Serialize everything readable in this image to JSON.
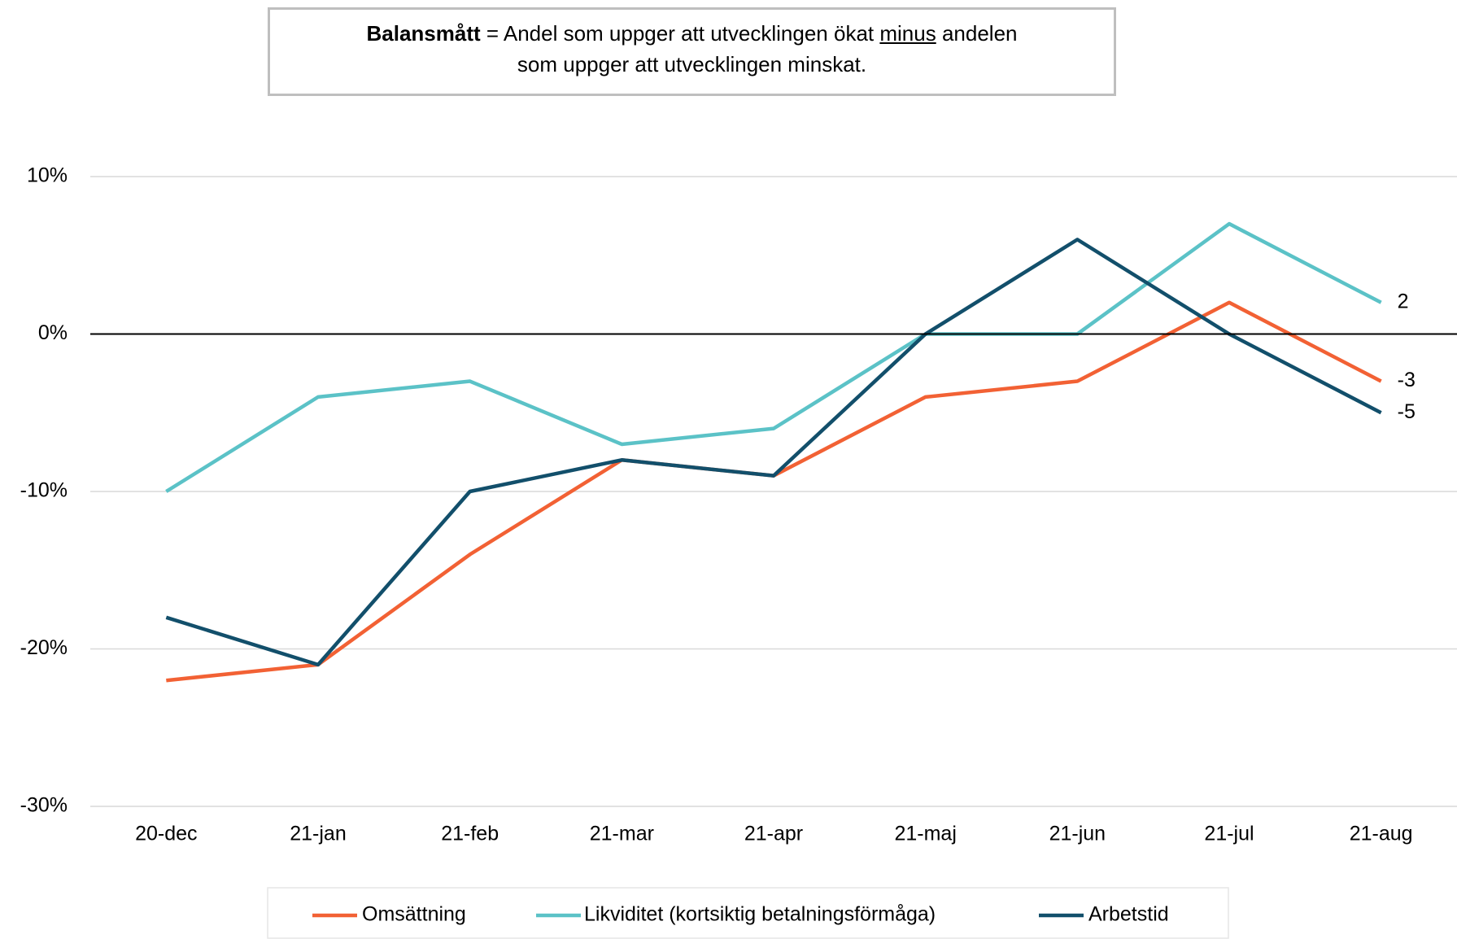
{
  "chart_data": {
    "type": "line",
    "annotation": {
      "term": "Balansmått",
      "line1": "= Andel som uppger att utvecklingen ökat",
      "emphasis": "minus",
      "line1_end": "andelen",
      "line2": "som uppger att utvecklingen minskat."
    },
    "categories": [
      "20-dec",
      "21-jan",
      "21-feb",
      "21-mar",
      "21-apr",
      "21-maj",
      "21-jun",
      "21-jul",
      "21-aug"
    ],
    "series": [
      {
        "name": "Omsättning",
        "color": "#f26134",
        "values": [
          -22,
          -21,
          -14,
          -8,
          -9,
          -4,
          -3,
          2,
          -3
        ]
      },
      {
        "name": "Likviditet (kortsiktig betalningsförmåga)",
        "color": "#5bc2c7",
        "values": [
          -10,
          -4,
          -3,
          -7,
          -6,
          0,
          0,
          7,
          2
        ]
      },
      {
        "name": "Arbetstid",
        "color": "#124f6b",
        "values": [
          -18,
          -21,
          -10,
          -8,
          -9,
          0,
          6,
          0,
          -5
        ]
      }
    ],
    "ylim": [
      -30,
      10
    ],
    "yticks": [
      {
        "value": -30,
        "label": "-30%"
      },
      {
        "value": -20,
        "label": "-20%"
      },
      {
        "value": -10,
        "label": "-10%"
      },
      {
        "value": 0,
        "label": "0%"
      },
      {
        "value": 10,
        "label": "10%"
      }
    ],
    "grid": true,
    "legend": "bottom",
    "end_labels": true
  }
}
